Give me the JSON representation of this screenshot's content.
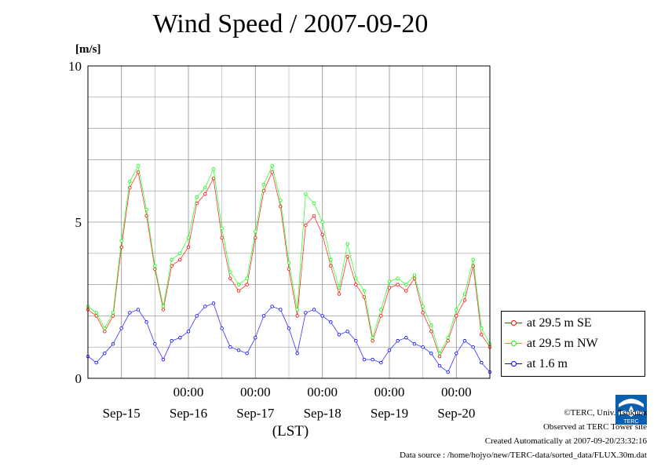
{
  "title": "Wind Speed / 2007-09-20",
  "unit_label": "[m/s]",
  "xlabel": "(LST)",
  "footer": {
    "copyright": "©TERC, Univ. Tsukuba",
    "observed": "Observed at TERC Tower site",
    "created": "Created Automatically at 2007-09-20/23:32:16",
    "source": "Data source : /home/hojyo/new/TERC-data/sorted_data/FLUX.30m.dat"
  },
  "logo_text": "TERC",
  "chart_data": {
    "type": "line",
    "title": "Wind Speed / 2007-09-20",
    "ylabel": "[m/s]",
    "xlabel": "(LST)",
    "ylim": [
      0,
      10
    ],
    "xlim_hours": [
      -36,
      108
    ],
    "y_ticks": [
      "0",
      "5",
      "10"
    ],
    "x_time_labels": [
      "00:00",
      "00:00",
      "00:00",
      "00:00",
      "00:00"
    ],
    "x_day_labels": [
      "Sep-15",
      "Sep-16",
      "Sep-17",
      "Sep-18",
      "Sep-19",
      "Sep-20"
    ],
    "grid": true,
    "legend_position": "bottom-right",
    "series": [
      {
        "name": "at 29.5 m SE",
        "color": "#ff0000",
        "x_hours": [
          -36,
          -33,
          -30,
          -27,
          -24,
          -21,
          -18,
          -15,
          -12,
          -9,
          -6,
          -3,
          0,
          3,
          6,
          9,
          12,
          15,
          18,
          21,
          24,
          27,
          30,
          33,
          36,
          39,
          42,
          45,
          48,
          51,
          54,
          57,
          60,
          63,
          66,
          69,
          72,
          75,
          78,
          81,
          84,
          87,
          90,
          93,
          96,
          99,
          102,
          105,
          108
        ],
        "values": [
          2.2,
          2.0,
          1.5,
          2.0,
          4.2,
          6.1,
          6.6,
          5.2,
          3.5,
          2.2,
          3.6,
          3.8,
          4.2,
          5.6,
          5.9,
          6.4,
          4.5,
          3.2,
          2.8,
          3.0,
          4.5,
          6.0,
          6.6,
          5.5,
          3.5,
          2.0,
          4.9,
          5.2,
          4.6,
          3.6,
          2.7,
          3.9,
          3.0,
          2.6,
          1.2,
          2.0,
          2.9,
          3.0,
          2.8,
          3.2,
          2.1,
          1.5,
          0.7,
          1.2,
          2.0,
          2.5,
          3.6,
          1.4,
          1.0
        ]
      },
      {
        "name": "at 29.5 m NW",
        "color": "#00ff00",
        "x_hours": [
          -36,
          -33,
          -30,
          -27,
          -24,
          -21,
          -18,
          -15,
          -12,
          -9,
          -6,
          -3,
          0,
          3,
          6,
          9,
          12,
          15,
          18,
          21,
          24,
          27,
          30,
          33,
          36,
          39,
          42,
          45,
          48,
          51,
          54,
          57,
          60,
          63,
          66,
          69,
          72,
          75,
          78,
          81,
          84,
          87,
          90,
          93,
          96,
          99,
          102,
          105,
          108
        ],
        "values": [
          2.3,
          2.1,
          1.6,
          2.1,
          4.4,
          6.3,
          6.8,
          5.4,
          3.6,
          2.3,
          3.8,
          4.0,
          4.5,
          5.8,
          6.1,
          6.7,
          4.8,
          3.4,
          3.0,
          3.2,
          4.7,
          6.2,
          6.8,
          5.7,
          3.7,
          2.2,
          5.9,
          5.6,
          5.0,
          3.8,
          2.9,
          4.3,
          3.2,
          2.8,
          1.3,
          2.2,
          3.1,
          3.2,
          3.0,
          3.3,
          2.3,
          1.7,
          0.8,
          1.3,
          2.2,
          2.7,
          3.8,
          1.6,
          1.1
        ]
      },
      {
        "name": "at 1.6 m",
        "color": "#0000ff",
        "x_hours": [
          -36,
          -33,
          -30,
          -27,
          -24,
          -21,
          -18,
          -15,
          -12,
          -9,
          -6,
          -3,
          0,
          3,
          6,
          9,
          12,
          15,
          18,
          21,
          24,
          27,
          30,
          33,
          36,
          39,
          42,
          45,
          48,
          51,
          54,
          57,
          60,
          63,
          66,
          69,
          72,
          75,
          78,
          81,
          84,
          87,
          90,
          93,
          96,
          99,
          102,
          105,
          108
        ],
        "values": [
          0.7,
          0.5,
          0.8,
          1.1,
          1.6,
          2.1,
          2.2,
          1.8,
          1.1,
          0.6,
          1.2,
          1.3,
          1.5,
          2.0,
          2.3,
          2.4,
          1.6,
          1.0,
          0.9,
          0.8,
          1.3,
          2.0,
          2.3,
          2.2,
          1.6,
          0.8,
          2.1,
          2.2,
          2.0,
          1.8,
          1.4,
          1.5,
          1.2,
          0.6,
          0.6,
          0.5,
          0.9,
          1.2,
          1.3,
          1.1,
          1.0,
          0.8,
          0.4,
          0.2,
          0.8,
          1.2,
          1.0,
          0.5,
          0.2
        ]
      }
    ]
  }
}
